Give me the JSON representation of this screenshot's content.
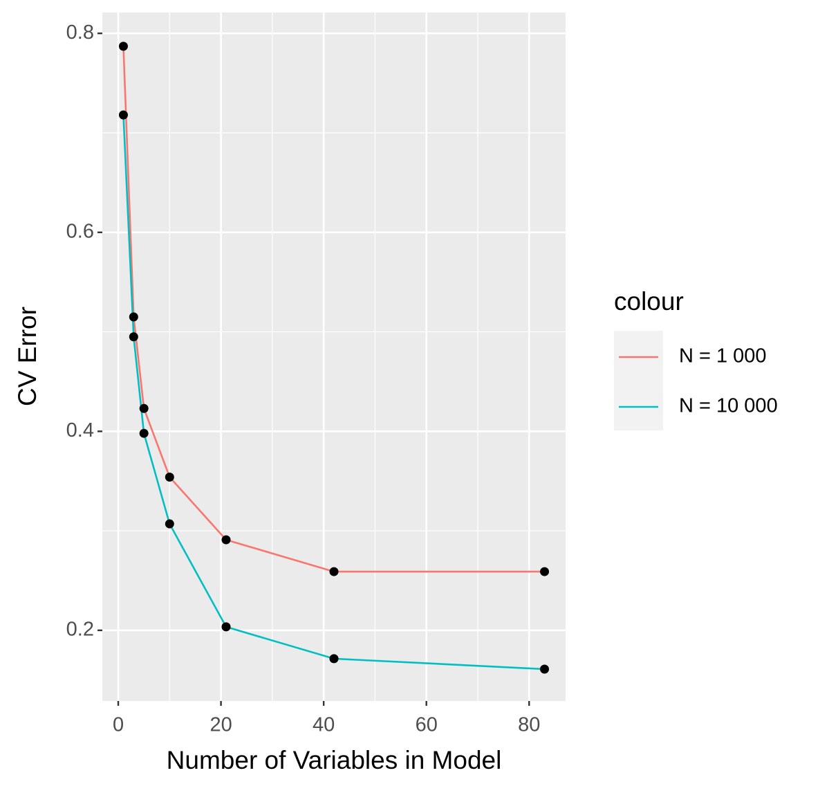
{
  "chart_data": {
    "type": "line",
    "x_label": "Number of Variables in Model",
    "y_label": "CV Error",
    "legend_title": "colour",
    "x": [
      1,
      3,
      5,
      10,
      21,
      42,
      83
    ],
    "series": [
      {
        "name": "N = 1 000",
        "color": "#F8766D",
        "values": [
          0.787,
          0.515,
          0.423,
          0.354,
          0.291,
          0.259,
          0.259
        ]
      },
      {
        "name": "N = 10 000",
        "color": "#00BFC4",
        "values": [
          0.718,
          0.495,
          0.398,
          0.307,
          0.2035,
          0.1715,
          0.161
        ]
      }
    ],
    "point_color": "#000000",
    "xlim": [
      -3.1,
      87.1
    ],
    "xticks": [
      0,
      20,
      40,
      60,
      80
    ],
    "ylim": [
      0.129,
      0.821
    ],
    "yticks": [
      0.2,
      0.4,
      0.6,
      0.8
    ],
    "grid": true,
    "legend_position": "right"
  }
}
